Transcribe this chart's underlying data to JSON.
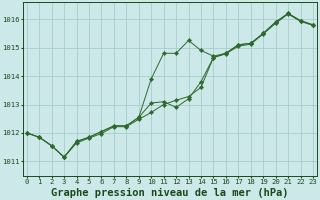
{
  "x": [
    0,
    1,
    2,
    3,
    4,
    5,
    6,
    7,
    8,
    9,
    10,
    11,
    12,
    13,
    14,
    15,
    16,
    17,
    18,
    19,
    20,
    21,
    22,
    23
  ],
  "line1": [
    1012.0,
    1011.85,
    1011.55,
    1011.15,
    1011.7,
    1011.85,
    1012.05,
    1012.25,
    1012.25,
    1012.55,
    1013.9,
    1014.8,
    1014.8,
    1015.25,
    1014.9,
    1014.7,
    1014.8,
    1015.1,
    1015.15,
    1015.5,
    1015.9,
    1016.2,
    1015.95,
    1015.8
  ],
  "line2": [
    1012.0,
    1011.85,
    1011.55,
    1011.15,
    1011.7,
    1011.85,
    1012.05,
    1012.25,
    1012.25,
    1012.55,
    1013.05,
    1013.1,
    1012.9,
    1013.2,
    1013.8,
    1014.65,
    1014.8,
    1015.1,
    1015.15,
    1015.5,
    1015.9,
    1016.2,
    1015.95,
    1015.8
  ],
  "line3": [
    1012.0,
    1011.85,
    1011.55,
    1011.15,
    1011.65,
    1011.82,
    1011.98,
    1012.22,
    1012.22,
    1012.48,
    1012.72,
    1013.0,
    1013.15,
    1013.28,
    1013.6,
    1014.65,
    1014.78,
    1015.05,
    1015.12,
    1015.48,
    1015.85,
    1016.18,
    1015.92,
    1015.78
  ],
  "ylim": [
    1010.5,
    1016.6
  ],
  "yticks": [
    1011,
    1012,
    1013,
    1014,
    1015,
    1016
  ],
  "xticks": [
    0,
    1,
    2,
    3,
    4,
    5,
    6,
    7,
    8,
    9,
    10,
    11,
    12,
    13,
    14,
    15,
    16,
    17,
    18,
    19,
    20,
    21,
    22,
    23
  ],
  "line_color": "#2d6a2d",
  "bg_color": "#cce8e8",
  "grid_color": "#a8cccc",
  "title": "Graphe pression niveau de la mer (hPa)",
  "title_color": "#1a4a1a",
  "tick_fontsize": 5.2,
  "title_fontsize": 7.5
}
